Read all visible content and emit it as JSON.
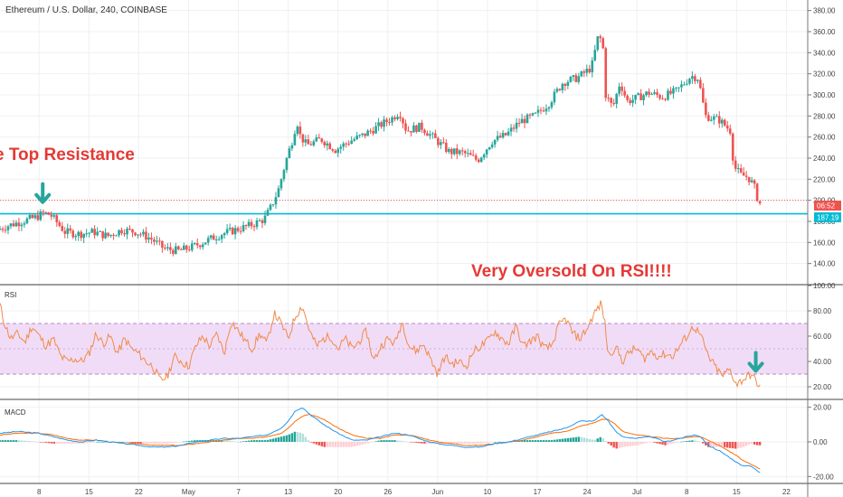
{
  "chart_data": [
    {
      "type": "candlestick",
      "title": "Ethereum / U.S. Dollar, 240, COINBASE",
      "ylim": [
        120,
        390
      ],
      "y_ticks": [
        140,
        160,
        180,
        200,
        220,
        240,
        260,
        280,
        300,
        320,
        340,
        360,
        380
      ],
      "y_tick_labels": [
        "140.00",
        "160.00",
        "180.00",
        "200.00",
        "220.00",
        "240.00",
        "260.00",
        "280.00",
        "300.00",
        "320.00",
        "340.00",
        "360.00",
        "380.00"
      ],
      "x_ticks": [
        8,
        15,
        22,
        29,
        36,
        43,
        50,
        57,
        64,
        71,
        78,
        85,
        92,
        99,
        106,
        113
      ],
      "x_tick_labels": [
        "8",
        "15",
        "22",
        "May",
        "7",
        "13",
        "20",
        "26",
        "Jun",
        "10",
        "17",
        "24",
        "Jul",
        "8",
        "15",
        "22"
      ],
      "xlim": [
        2.5,
        116
      ],
      "grid": true,
      "price_path": [
        [
          2.5,
          172
        ],
        [
          4,
          176
        ],
        [
          6,
          180
        ],
        [
          8,
          184
        ],
        [
          9,
          188
        ],
        [
          10,
          186
        ],
        [
          11,
          178
        ],
        [
          12,
          170
        ],
        [
          14,
          168
        ],
        [
          16,
          170
        ],
        [
          18,
          166
        ],
        [
          20,
          172
        ],
        [
          22,
          170
        ],
        [
          24,
          164
        ],
        [
          26,
          154
        ],
        [
          28,
          152
        ],
        [
          30,
          156
        ],
        [
          32,
          162
        ],
        [
          34,
          168
        ],
        [
          36,
          172
        ],
        [
          38,
          176
        ],
        [
          40,
          182
        ],
        [
          41,
          194
        ],
        [
          42,
          210
        ],
        [
          43,
          236
        ],
        [
          44,
          258
        ],
        [
          44.6,
          276
        ],
        [
          45,
          262
        ],
        [
          46,
          252
        ],
        [
          48,
          258
        ],
        [
          50,
          248
        ],
        [
          52,
          256
        ],
        [
          54,
          262
        ],
        [
          56,
          270
        ],
        [
          58,
          278
        ],
        [
          59,
          284
        ],
        [
          60,
          266
        ],
        [
          62,
          270
        ],
        [
          64,
          258
        ],
        [
          66,
          246
        ],
        [
          68,
          245
        ],
        [
          70,
          238
        ],
        [
          72,
          256
        ],
        [
          74,
          262
        ],
        [
          76,
          275
        ],
        [
          78,
          280
        ],
        [
          80,
          292
        ],
        [
          82,
          312
        ],
        [
          84,
          316
        ],
        [
          86,
          326
        ],
        [
          87,
          358
        ],
        [
          87.6,
          346
        ],
        [
          88,
          300
        ],
        [
          89,
          288
        ],
        [
          90,
          312
        ],
        [
          91,
          294
        ],
        [
          92,
          296
        ],
        [
          94,
          302
        ],
        [
          96,
          298
        ],
        [
          98,
          304
        ],
        [
          100,
          318
        ],
        [
          101,
          316
        ],
        [
          102,
          280
        ],
        [
          104,
          276
        ],
        [
          105.5,
          266
        ],
        [
          106,
          232
        ],
        [
          107,
          224
        ],
        [
          108,
          222
        ],
        [
          108.8,
          214
        ],
        [
          109,
          210
        ],
        [
          109.5,
          197
        ]
      ],
      "resistance_level": 187.19,
      "resistance_label": "187.19",
      "last_price_level": 200,
      "countdown_label": "06:52",
      "annotations": [
        {
          "text": "e Top Resistance",
          "color": "#e53935"
        },
        {
          "text": "Very Oversold On RSI!!!!",
          "color": "#e53935"
        }
      ],
      "markers": [
        {
          "name": "green-down-arrow",
          "x": 8.5,
          "y": 206,
          "color": "#26a69a"
        }
      ],
      "colors": {
        "up": "#26a69a",
        "down": "#ef5350",
        "resistance": "#00bcd4",
        "last_price": "#ef5350"
      }
    },
    {
      "type": "line",
      "title": "RSI",
      "ylim": [
        10,
        100
      ],
      "y_ticks": [
        20,
        40,
        60,
        80,
        100
      ],
      "y_tick_labels": [
        "20.00",
        "40.00",
        "60.00",
        "80.00",
        "100.00"
      ],
      "band": [
        30,
        70
      ],
      "mid_level": 50,
      "rsi_path": [
        [
          2.5,
          85
        ],
        [
          3,
          72
        ],
        [
          4,
          58
        ],
        [
          5,
          62
        ],
        [
          6,
          55
        ],
        [
          7,
          68
        ],
        [
          8,
          60
        ],
        [
          9,
          52
        ],
        [
          10,
          58
        ],
        [
          11,
          44
        ],
        [
          12,
          40
        ],
        [
          13,
          42
        ],
        [
          14,
          40
        ],
        [
          15,
          46
        ],
        [
          16,
          62
        ],
        [
          17,
          54
        ],
        [
          18,
          60
        ],
        [
          19,
          46
        ],
        [
          20,
          58
        ],
        [
          21,
          50
        ],
        [
          22,
          46
        ],
        [
          23,
          40
        ],
        [
          24,
          36
        ],
        [
          25,
          25
        ],
        [
          26,
          28
        ],
        [
          27,
          44
        ],
        [
          28,
          40
        ],
        [
          29,
          36
        ],
        [
          30,
          52
        ],
        [
          31,
          60
        ],
        [
          32,
          52
        ],
        [
          33,
          62
        ],
        [
          34,
          46
        ],
        [
          35,
          72
        ],
        [
          36,
          64
        ],
        [
          37,
          56
        ],
        [
          38,
          50
        ],
        [
          39,
          62
        ],
        [
          40,
          54
        ],
        [
          41,
          78
        ],
        [
          42,
          70
        ],
        [
          43,
          58
        ],
        [
          44,
          76
        ],
        [
          45,
          84
        ],
        [
          46,
          64
        ],
        [
          47,
          52
        ],
        [
          48,
          58
        ],
        [
          49,
          60
        ],
        [
          50,
          50
        ],
        [
          51,
          58
        ],
        [
          52,
          50
        ],
        [
          53,
          56
        ],
        [
          54,
          64
        ],
        [
          55,
          40
        ],
        [
          56,
          52
        ],
        [
          57,
          58
        ],
        [
          58,
          54
        ],
        [
          59,
          72
        ],
        [
          60,
          52
        ],
        [
          61,
          48
        ],
        [
          62,
          54
        ],
        [
          63,
          42
        ],
        [
          64,
          30
        ],
        [
          65,
          44
        ],
        [
          66,
          38
        ],
        [
          67,
          40
        ],
        [
          68,
          36
        ],
        [
          69,
          48
        ],
        [
          70,
          52
        ],
        [
          71,
          56
        ],
        [
          72,
          64
        ],
        [
          73,
          58
        ],
        [
          74,
          54
        ],
        [
          75,
          68
        ],
        [
          76,
          52
        ],
        [
          77,
          56
        ],
        [
          78,
          60
        ],
        [
          79,
          50
        ],
        [
          80,
          52
        ],
        [
          81,
          68
        ],
        [
          82,
          74
        ],
        [
          83,
          62
        ],
        [
          84,
          58
        ],
        [
          85,
          66
        ],
        [
          86,
          78
        ],
        [
          87,
          86
        ],
        [
          87.5,
          70
        ],
        [
          88,
          44
        ],
        [
          89,
          52
        ],
        [
          90,
          40
        ],
        [
          91,
          48
        ],
        [
          92,
          50
        ],
        [
          93,
          42
        ],
        [
          94,
          48
        ],
        [
          95,
          44
        ],
        [
          96,
          46
        ],
        [
          97,
          44
        ],
        [
          98,
          52
        ],
        [
          99,
          60
        ],
        [
          100,
          68
        ],
        [
          101,
          60
        ],
        [
          102,
          44
        ],
        [
          103,
          36
        ],
        [
          104,
          28
        ],
        [
          105,
          34
        ],
        [
          106,
          22
        ],
        [
          107,
          26
        ],
        [
          108,
          30
        ],
        [
          108.8,
          24
        ],
        [
          109,
          22
        ],
        [
          109.5,
          18
        ]
      ],
      "markers": [
        {
          "name": "green-down-arrow",
          "x": 108.7,
          "y": 39,
          "color": "#26a69a"
        }
      ],
      "colors": {
        "line": "#f08b48",
        "band_fill": "#f1dcf7",
        "band_line": "#b388c9",
        "mid_line": "#cfa8e6"
      }
    },
    {
      "type": "macd",
      "title": "MACD",
      "ylim": [
        -24,
        24
      ],
      "y_ticks": [
        -20,
        0,
        20
      ],
      "y_tick_labels": [
        "-20.00",
        "0.00",
        "20.00"
      ],
      "macd_path": [
        [
          2.5,
          5
        ],
        [
          5,
          6
        ],
        [
          8,
          5
        ],
        [
          10,
          3
        ],
        [
          12,
          1
        ],
        [
          14,
          0
        ],
        [
          16,
          1
        ],
        [
          18,
          0
        ],
        [
          20,
          -1
        ],
        [
          22,
          -2
        ],
        [
          24,
          -3
        ],
        [
          26,
          -3
        ],
        [
          28,
          -2
        ],
        [
          30,
          0
        ],
        [
          32,
          1
        ],
        [
          34,
          2
        ],
        [
          36,
          2
        ],
        [
          38,
          3
        ],
        [
          40,
          4
        ],
        [
          42,
          8
        ],
        [
          43,
          12
        ],
        [
          44,
          18
        ],
        [
          45,
          20
        ],
        [
          46,
          16
        ],
        [
          48,
          10
        ],
        [
          50,
          5
        ],
        [
          52,
          1
        ],
        [
          54,
          1
        ],
        [
          56,
          3
        ],
        [
          58,
          5
        ],
        [
          60,
          4
        ],
        [
          62,
          1
        ],
        [
          64,
          -1
        ],
        [
          66,
          -2
        ],
        [
          68,
          -3
        ],
        [
          70,
          -3
        ],
        [
          72,
          -1
        ],
        [
          74,
          0
        ],
        [
          76,
          2
        ],
        [
          78,
          4
        ],
        [
          80,
          6
        ],
        [
          82,
          8
        ],
        [
          84,
          12
        ],
        [
          86,
          12
        ],
        [
          87,
          16
        ],
        [
          88,
          12
        ],
        [
          89,
          6
        ],
        [
          90,
          3
        ],
        [
          92,
          2
        ],
        [
          94,
          3
        ],
        [
          96,
          0
        ],
        [
          98,
          2
        ],
        [
          100,
          4
        ],
        [
          101,
          3
        ],
        [
          102,
          -2
        ],
        [
          104,
          -6
        ],
        [
          106,
          -12
        ],
        [
          107,
          -14
        ],
        [
          108,
          -14
        ],
        [
          109,
          -17
        ],
        [
          109.5,
          -18
        ]
      ],
      "signal_path": [
        [
          2.5,
          4
        ],
        [
          5,
          5
        ],
        [
          8,
          5
        ],
        [
          10,
          4
        ],
        [
          12,
          2
        ],
        [
          14,
          1
        ],
        [
          16,
          1
        ],
        [
          18,
          0
        ],
        [
          20,
          -1
        ],
        [
          22,
          -1
        ],
        [
          24,
          -2
        ],
        [
          26,
          -2
        ],
        [
          28,
          -2
        ],
        [
          30,
          -1
        ],
        [
          32,
          0
        ],
        [
          34,
          1
        ],
        [
          36,
          2
        ],
        [
          38,
          2
        ],
        [
          40,
          3
        ],
        [
          42,
          5
        ],
        [
          43,
          8
        ],
        [
          44,
          12
        ],
        [
          45,
          15
        ],
        [
          46,
          16
        ],
        [
          48,
          13
        ],
        [
          50,
          8
        ],
        [
          52,
          4
        ],
        [
          54,
          2
        ],
        [
          56,
          2
        ],
        [
          58,
          4
        ],
        [
          60,
          4
        ],
        [
          62,
          2
        ],
        [
          64,
          0
        ],
        [
          66,
          -1
        ],
        [
          68,
          -2
        ],
        [
          70,
          -2
        ],
        [
          72,
          -1
        ],
        [
          74,
          0
        ],
        [
          76,
          1
        ],
        [
          78,
          3
        ],
        [
          80,
          5
        ],
        [
          82,
          6
        ],
        [
          84,
          9
        ],
        [
          86,
          11
        ],
        [
          87,
          13
        ],
        [
          88,
          13
        ],
        [
          89,
          10
        ],
        [
          90,
          6
        ],
        [
          92,
          4
        ],
        [
          94,
          3
        ],
        [
          96,
          2
        ],
        [
          98,
          2
        ],
        [
          100,
          3
        ],
        [
          101,
          3
        ],
        [
          102,
          1
        ],
        [
          104,
          -3
        ],
        [
          106,
          -8
        ],
        [
          107,
          -11
        ],
        [
          108,
          -13
        ],
        [
          109,
          -15
        ],
        [
          109.5,
          -16
        ]
      ],
      "colors": {
        "macd": "#2196f3",
        "signal": "#ff6d00",
        "hist_up": "#26a69a",
        "hist_down": "#ef5350",
        "hist_up_light": "#b2dfdb",
        "hist_down_light": "#ffcdd2"
      }
    }
  ]
}
